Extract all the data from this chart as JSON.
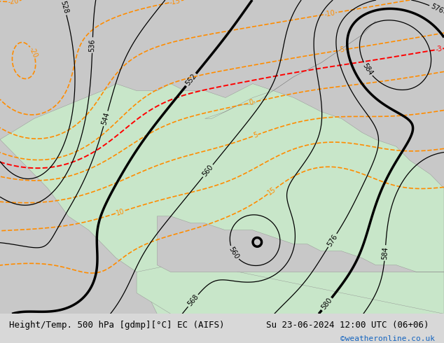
{
  "title_left": "Height/Temp. 500 hPa [gdmp][°C] EC (AIFS)",
  "title_right": "Su 23-06-2024 12:00 UTC (06+06)",
  "credit": "©weatheronline.co.uk",
  "bg_color": "#d8d8d8",
  "land_color": "#c8e6c9",
  "sea_color": "#c8c8c8",
  "height_contour_color": "#000000",
  "temp_orange_color": "#ff8c00",
  "temp_red_color": "#ff0000",
  "temp_teal_color": "#00bcd4",
  "temp_green_color": "#7cb342",
  "bottom_bar_color": "#ffffff",
  "credit_color": "#1565c0",
  "font_size_title": 9,
  "font_size_credit": 8,
  "xlim": [
    -25,
    40
  ],
  "ylim": [
    30,
    75
  ]
}
